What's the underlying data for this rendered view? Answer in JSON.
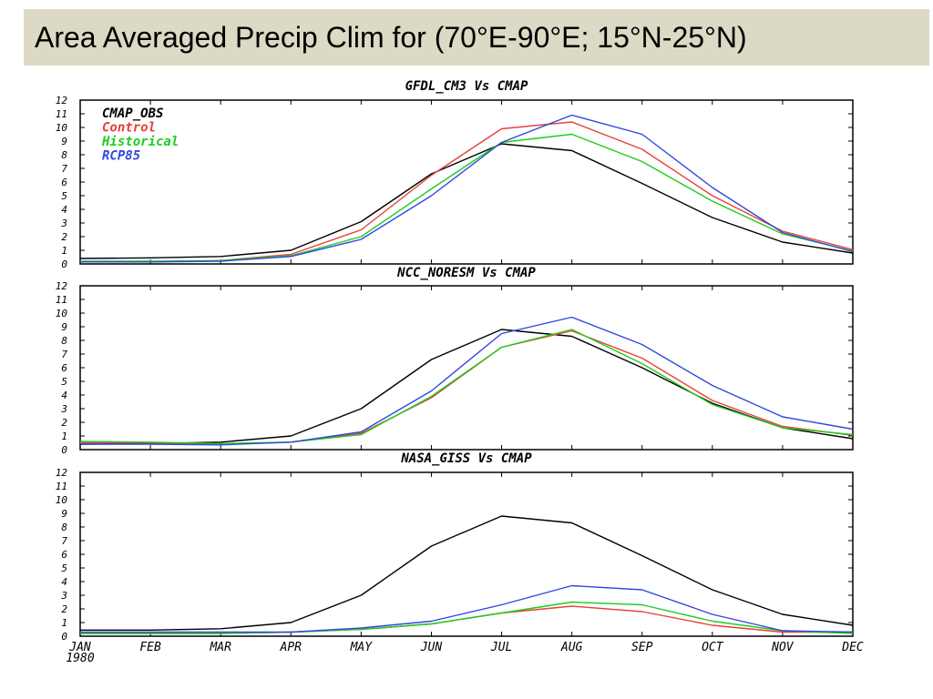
{
  "slide": {
    "title": "Area Averaged Precip Clim for (70°E-90°E; 15°N-25°N)"
  },
  "colors": {
    "title_bar": "#dcd9c4",
    "CMAP_OBS": "#000000",
    "Control": "#e8403a",
    "Historical": "#1fcc1f",
    "RCP85": "#2f48e0"
  },
  "chart_data": [
    {
      "type": "line",
      "title": "GFDL_CM3 Vs CMAP",
      "categories": [
        "JAN",
        "FEB",
        "MAR",
        "APR",
        "MAY",
        "JUN",
        "JUL",
        "AUG",
        "SEP",
        "OCT",
        "NOV",
        "DEC"
      ],
      "x_first_label_sub": "1980",
      "ylim": [
        0,
        12
      ],
      "yticks": [
        0,
        1,
        2,
        3,
        4,
        5,
        6,
        7,
        8,
        9,
        10,
        11,
        12
      ],
      "legend": {
        "placement": "top-left",
        "entries": [
          "CMAP_OBS",
          "Control",
          "Historical",
          "RCP85"
        ],
        "labels": [
          "CMAP_OBS",
          "Control",
          "Historical",
          "RCP85"
        ]
      },
      "series": [
        {
          "name": "CMAP_OBS",
          "values": [
            0.4,
            0.45,
            0.55,
            1.0,
            3.1,
            6.6,
            8.8,
            8.3,
            5.9,
            3.4,
            1.6,
            0.8
          ]
        },
        {
          "name": "Control",
          "values": [
            0.15,
            0.15,
            0.25,
            0.7,
            2.5,
            6.5,
            9.9,
            10.4,
            8.4,
            5.0,
            2.4,
            1.05
          ]
        },
        {
          "name": "Historical",
          "values": [
            0.2,
            0.2,
            0.25,
            0.6,
            2.0,
            5.5,
            8.9,
            9.5,
            7.5,
            4.6,
            2.2,
            0.95
          ]
        },
        {
          "name": "RCP85",
          "values": [
            0.15,
            0.15,
            0.2,
            0.55,
            1.8,
            5.0,
            8.9,
            10.9,
            9.5,
            5.6,
            2.3,
            0.9
          ]
        }
      ]
    },
    {
      "type": "line",
      "title": "NCC_NORESM Vs CMAP",
      "categories": [
        "JAN",
        "FEB",
        "MAR",
        "APR",
        "MAY",
        "JUN",
        "JUL",
        "AUG",
        "SEP",
        "OCT",
        "NOV",
        "DEC"
      ],
      "ylim": [
        0,
        12
      ],
      "yticks": [
        0,
        1,
        2,
        3,
        4,
        5,
        6,
        7,
        8,
        9,
        10,
        11,
        12
      ],
      "series": [
        {
          "name": "CMAP_OBS",
          "values": [
            0.4,
            0.45,
            0.55,
            1.0,
            3.0,
            6.6,
            8.8,
            8.3,
            6.0,
            3.4,
            1.6,
            0.8
          ]
        },
        {
          "name": "Control",
          "values": [
            0.5,
            0.5,
            0.4,
            0.55,
            1.2,
            3.8,
            7.5,
            8.7,
            6.7,
            3.6,
            1.7,
            1.05
          ]
        },
        {
          "name": "Historical",
          "values": [
            0.6,
            0.55,
            0.45,
            0.55,
            1.1,
            3.9,
            7.5,
            8.8,
            6.3,
            3.3,
            1.6,
            1.1
          ]
        },
        {
          "name": "RCP85",
          "values": [
            0.4,
            0.4,
            0.35,
            0.55,
            1.3,
            4.3,
            8.5,
            9.7,
            7.7,
            4.7,
            2.4,
            1.5
          ]
        }
      ]
    },
    {
      "type": "line",
      "title": "NASA_GISS Vs CMAP",
      "categories": [
        "JAN",
        "FEB",
        "MAR",
        "APR",
        "MAY",
        "JUN",
        "JUL",
        "AUG",
        "SEP",
        "OCT",
        "NOV",
        "DEC"
      ],
      "x_first_label_sub": "1980",
      "ylim": [
        0,
        12
      ],
      "yticks": [
        0,
        1,
        2,
        3,
        4,
        5,
        6,
        7,
        8,
        9,
        10,
        11,
        12
      ],
      "series": [
        {
          "name": "CMAP_OBS",
          "values": [
            0.45,
            0.45,
            0.55,
            1.0,
            3.0,
            6.6,
            8.8,
            8.3,
            5.9,
            3.4,
            1.6,
            0.8
          ]
        },
        {
          "name": "Control",
          "values": [
            0.2,
            0.2,
            0.2,
            0.3,
            0.5,
            0.9,
            1.7,
            2.2,
            1.8,
            0.8,
            0.3,
            0.3
          ]
        },
        {
          "name": "Historical",
          "values": [
            0.2,
            0.2,
            0.2,
            0.3,
            0.5,
            0.9,
            1.7,
            2.5,
            2.3,
            1.1,
            0.4,
            0.2
          ]
        },
        {
          "name": "RCP85",
          "values": [
            0.3,
            0.3,
            0.3,
            0.3,
            0.6,
            1.1,
            2.3,
            3.7,
            3.4,
            1.6,
            0.4,
            0.3
          ]
        }
      ]
    }
  ]
}
